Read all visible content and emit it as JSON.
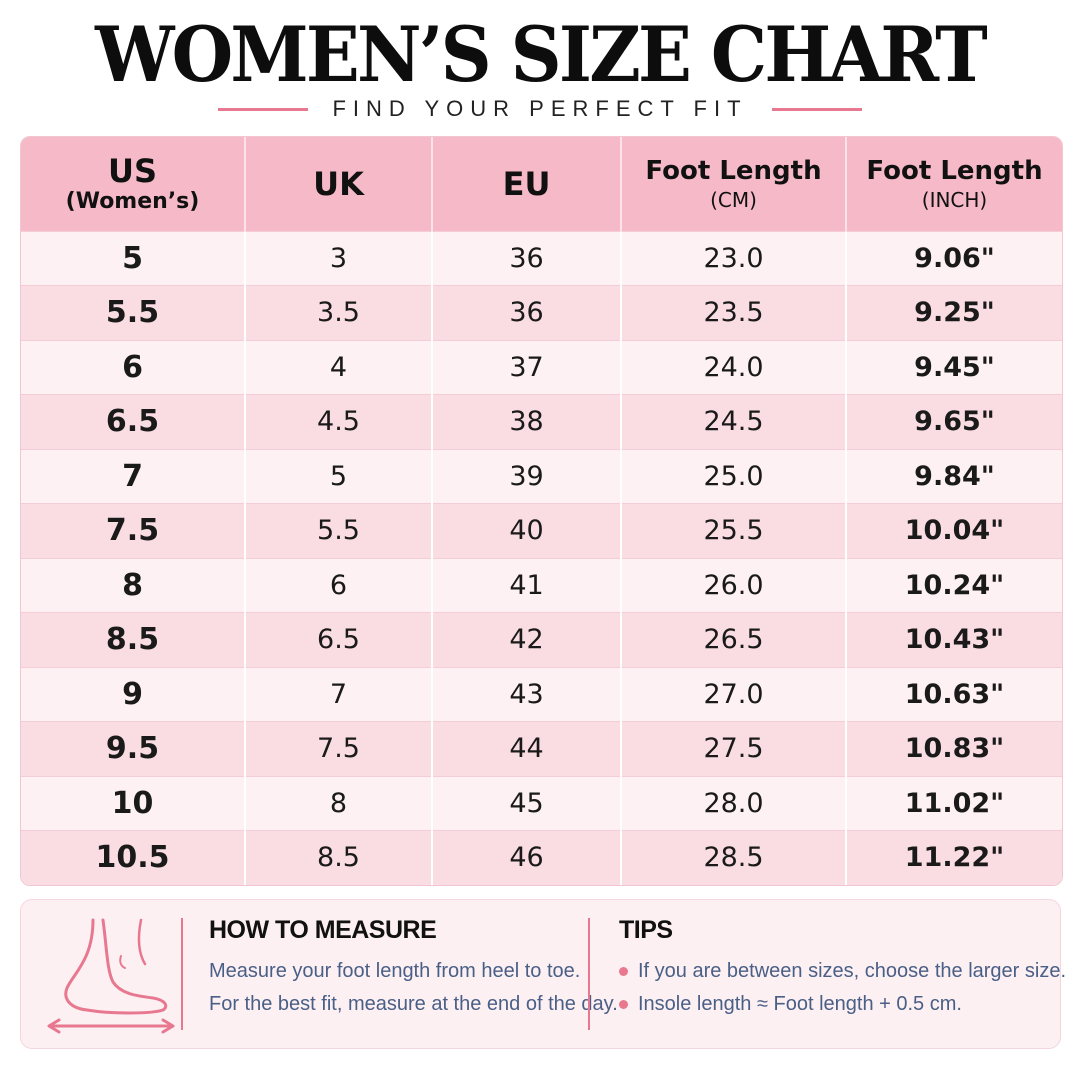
{
  "header": {
    "title": "WOMEN’S SIZE CHART",
    "subtitle": "FIND YOUR PERFECT FIT"
  },
  "table": {
    "columns": [
      {
        "main": "US",
        "sub": "(Women’s)"
      },
      {
        "main": "UK",
        "sub": ""
      },
      {
        "main": "EU",
        "sub": ""
      },
      {
        "main": "Foot Length",
        "sub": "(CM)"
      },
      {
        "main": "Foot Length",
        "sub": "(INCH)"
      }
    ],
    "rows": [
      [
        "5",
        "3",
        "36",
        "23.0",
        "9.06\""
      ],
      [
        "5.5",
        "3.5",
        "36",
        "23.5",
        "9.25\""
      ],
      [
        "6",
        "4",
        "37",
        "24.0",
        "9.45\""
      ],
      [
        "6.5",
        "4.5",
        "38",
        "24.5",
        "9.65\""
      ],
      [
        "7",
        "5",
        "39",
        "25.0",
        "9.84\""
      ],
      [
        "7.5",
        "5.5",
        "40",
        "25.5",
        "10.04\""
      ],
      [
        "8",
        "6",
        "41",
        "26.0",
        "10.24\""
      ],
      [
        "8.5",
        "6.5",
        "42",
        "26.5",
        "10.43\""
      ],
      [
        "9",
        "7",
        "43",
        "27.0",
        "10.63\""
      ],
      [
        "9.5",
        "7.5",
        "44",
        "27.5",
        "10.83\""
      ],
      [
        "10",
        "8",
        "45",
        "28.0",
        "11.02\""
      ],
      [
        "10.5",
        "8.5",
        "46",
        "28.5",
        "11.22\""
      ]
    ]
  },
  "how_to_measure": {
    "heading": "HOW TO MEASURE",
    "lines": [
      "Measure your foot length from heel to toe.",
      "For the best fit, measure at the end of the day."
    ],
    "icon": "foot-measure-icon"
  },
  "tips": {
    "heading": "TIPS",
    "items": [
      "If you are between sizes, choose the larger size.",
      "Insole length ≈ Foot length + 0.5 cm."
    ]
  },
  "colors": {
    "accent": "#e8788f",
    "header_bg": "#f5b9c8",
    "row_light": "#fdf1f3",
    "row_dark": "#f9dde3",
    "text_blue": "#4a5f86"
  }
}
